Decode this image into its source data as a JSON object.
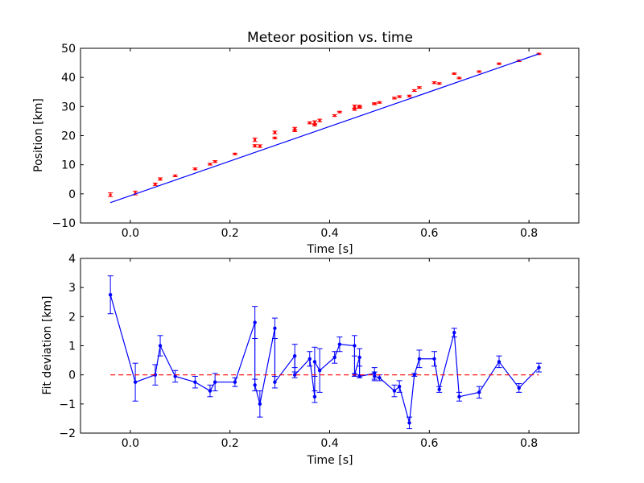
{
  "colors": {
    "fit_line": "#0000ff",
    "position_markers": "#ff0000",
    "deviation_series": "#0000ff",
    "zero_line": "#ff0000",
    "axes": "#000000",
    "background": "#ffffff"
  },
  "chart_data": [
    {
      "type": "scatter",
      "title": "Meteor position vs. time",
      "xlabel": "Time [s]",
      "ylabel": "Position [km]",
      "xlim": [
        -0.1,
        0.9
      ],
      "ylim": [
        -10,
        50
      ],
      "xticks": [
        "0.0",
        "0.2",
        "0.4",
        "0.6",
        "0.8"
      ],
      "yticks": [
        "−10",
        "0",
        "10",
        "20",
        "30",
        "40",
        "50"
      ],
      "grid": false,
      "legend": "none",
      "series": [
        {
          "kind": "errorbar-points",
          "color": "red",
          "x": [
            -0.04,
            0.01,
            0.05,
            0.06,
            0.09,
            0.13,
            0.16,
            0.17,
            0.21,
            0.25,
            0.25,
            0.26,
            0.29,
            0.29,
            0.33,
            0.33,
            0.36,
            0.37,
            0.37,
            0.38,
            0.41,
            0.42,
            0.45,
            0.45,
            0.46,
            0.46,
            0.49,
            0.49,
            0.5,
            0.53,
            0.54,
            0.56,
            0.57,
            0.58,
            0.61,
            0.62,
            0.65,
            0.66,
            0.7,
            0.74,
            0.78,
            0.82
          ],
          "y": [
            -0.3,
            0.3,
            3.3,
            5.1,
            6.2,
            8.6,
            10.2,
            11.1,
            13.7,
            18.6,
            16.5,
            16.4,
            21.1,
            19.2,
            22.4,
            21.7,
            24.4,
            23.6,
            24.6,
            25.2,
            26.9,
            28.1,
            30.0,
            29.0,
            30.1,
            29.7,
            31.0,
            30.9,
            31.4,
            32.9,
            33.4,
            33.6,
            35.5,
            36.5,
            38.2,
            37.9,
            41.3,
            39.8,
            42.0,
            44.7,
            45.7,
            48.1
          ],
          "yerr": [
            0.65,
            0.65,
            0.4,
            0.4,
            0.3,
            0.3,
            0.3,
            0.3,
            0.25,
            0.6,
            0.4,
            0.45,
            0.45,
            0.3,
            0.45,
            0.3,
            0.35,
            0.25,
            0.5,
            0.45,
            0.3,
            0.25,
            0.5,
            0.3,
            0.35,
            0.3,
            0.3,
            0.25,
            0.25,
            0.3,
            0.3,
            0.3,
            0.3,
            0.3,
            0.3,
            0.25,
            0.2,
            0.25,
            0.25,
            0.25,
            0.25,
            0.2
          ]
        },
        {
          "kind": "fit-line",
          "color": "blue",
          "x": [
            -0.04,
            0.82
          ],
          "y": [
            -3.0,
            48.1
          ]
        }
      ]
    },
    {
      "type": "line",
      "title": "",
      "xlabel": "Time [s]",
      "ylabel": "Fit deviation [km]",
      "xlim": [
        -0.1,
        0.9
      ],
      "ylim": [
        -2,
        4
      ],
      "xticks": [
        "0.0",
        "0.2",
        "0.4",
        "0.6",
        "0.8"
      ],
      "yticks": [
        "−2",
        "−1",
        "0",
        "1",
        "2",
        "3",
        "4"
      ],
      "grid": false,
      "legend": "none",
      "series": [
        {
          "kind": "errorbar-line",
          "color": "blue",
          "x": [
            -0.04,
            0.01,
            0.05,
            0.06,
            0.09,
            0.13,
            0.16,
            0.17,
            0.21,
            0.25,
            0.25,
            0.26,
            0.29,
            0.29,
            0.33,
            0.33,
            0.36,
            0.37,
            0.37,
            0.38,
            0.41,
            0.42,
            0.45,
            0.45,
            0.46,
            0.46,
            0.49,
            0.49,
            0.5,
            0.53,
            0.54,
            0.56,
            0.57,
            0.58,
            0.61,
            0.62,
            0.65,
            0.66,
            0.7,
            0.74,
            0.78,
            0.82
          ],
          "y": [
            2.75,
            -0.25,
            0.0,
            1.0,
            -0.05,
            -0.25,
            -0.55,
            -0.25,
            -0.25,
            1.8,
            -0.35,
            -1.0,
            1.6,
            -0.25,
            0.65,
            0.0,
            0.55,
            -0.75,
            0.45,
            0.15,
            0.6,
            1.05,
            1.0,
            0.0,
            0.6,
            -0.05,
            0.05,
            -0.05,
            -0.1,
            -0.55,
            -0.4,
            -1.65,
            0.0,
            0.55,
            0.55,
            -0.5,
            1.45,
            -0.75,
            -0.6,
            0.45,
            -0.45,
            0.25
          ],
          "yerr": [
            0.65,
            0.65,
            0.35,
            0.35,
            0.2,
            0.2,
            0.2,
            0.3,
            0.15,
            0.55,
            0.2,
            0.45,
            0.35,
            0.2,
            0.4,
            0.1,
            0.25,
            0.2,
            0.5,
            0.75,
            0.2,
            0.25,
            0.35,
            0.05,
            0.3,
            0.05,
            0.2,
            0.15,
            0.1,
            0.2,
            0.2,
            0.2,
            0.05,
            0.3,
            0.25,
            0.1,
            0.15,
            0.15,
            0.2,
            0.2,
            0.15,
            0.15
          ]
        },
        {
          "kind": "zero-reference",
          "color": "red",
          "style": "dashed",
          "x": [
            -0.04,
            0.82
          ],
          "y": [
            0,
            0
          ]
        }
      ]
    }
  ]
}
